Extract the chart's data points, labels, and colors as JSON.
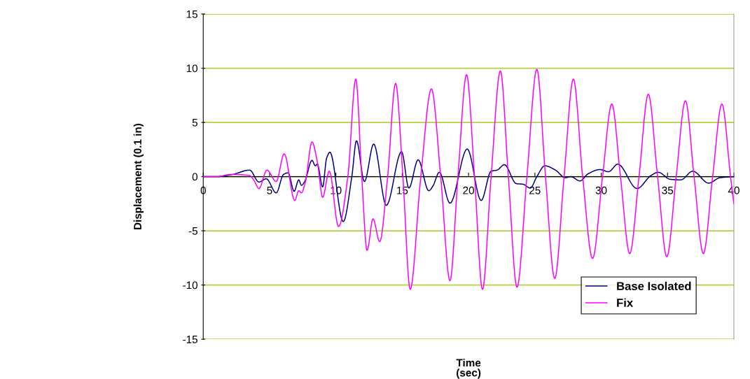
{
  "chart_data": {
    "type": "line",
    "xlabel": "Time\n(sec)",
    "ylabel": "Displacement (0.1 in)",
    "xlim": [
      0,
      40
    ],
    "xticks": [
      0,
      5,
      10,
      15,
      20,
      25,
      30,
      35,
      40
    ],
    "ylim": [
      -15,
      15
    ],
    "yticks": [
      -15,
      -10,
      -5,
      0,
      5,
      10,
      15
    ],
    "grid": "y",
    "legend": "bottom right",
    "marker": "none",
    "line_style": "solid",
    "series": [
      {
        "name": "Base Isolated",
        "color": "#000080",
        "x": [
          0,
          1,
          2.2,
          3.5,
          4.2,
          4.75,
          5.5,
          6.05,
          6.4,
          6.85,
          7.2,
          7.4,
          7.65,
          8.2,
          8.45,
          8.6,
          9.0,
          9.3,
          9.55,
          10.55,
          11.2,
          11.55,
          12.15,
          12.85,
          13.8,
          14.95,
          15.5,
          16.2,
          17.0,
          17.3,
          17.8,
          18.6,
          19.9,
          20.95,
          21.7,
          22.15,
          22.7,
          23.6,
          24.1,
          24.65,
          25.15,
          25.75,
          26.55,
          27.3,
          27.7,
          28.4,
          29.0,
          29.9,
          30.55,
          31.25,
          32.7,
          33.75,
          34.3,
          35.2,
          36.0,
          36.9,
          38.1,
          38.95,
          40
        ],
        "values": [
          0,
          0,
          0.2,
          0.6,
          -0.5,
          -0.2,
          -1.5,
          0.2,
          0.35,
          -1.35,
          -0.3,
          -0.8,
          -0.45,
          1.5,
          1.0,
          1.15,
          -0.95,
          1.7,
          2.25,
          -4.15,
          0,
          3.3,
          -0.45,
          3.0,
          -2.65,
          2.3,
          -1.05,
          1.55,
          -1.3,
          -0.9,
          0.4,
          -2.45,
          2.55,
          -2.2,
          0.5,
          0.6,
          1.1,
          -0.65,
          -0.7,
          -1.05,
          0,
          1.0,
          0.6,
          -0.1,
          0,
          -0.4,
          0.25,
          0.65,
          0.45,
          1.15,
          -1.1,
          0.1,
          0.4,
          -0.25,
          -0.3,
          0.5,
          -0.6,
          -0.1,
          0
        ]
      },
      {
        "name": "Fix",
        "color": "#ff00ff",
        "x": [
          0,
          1,
          2.1,
          3.5,
          3.8,
          4.2,
          4.8,
          5.5,
          6.1,
          6.9,
          7.2,
          7.4,
          7.7,
          8.2,
          8.6,
          9.0,
          9.5,
          10.2,
          10.9,
          11.5,
          11.95,
          12.35,
          12.8,
          13.3,
          13.9,
          14.5,
          15.05,
          15.6,
          16.4,
          17.2,
          17.9,
          18.6,
          19.2,
          19.85,
          20.45,
          21.05,
          21.7,
          22.4,
          23.0,
          23.65,
          24.4,
          25.15,
          25.8,
          26.5,
          27.2,
          27.9,
          28.6,
          29.35,
          30.1,
          30.8,
          31.45,
          32.15,
          32.85,
          33.55,
          34.25,
          34.95,
          35.65,
          36.35,
          37.0,
          37.7,
          38.4,
          39.1,
          39.75,
          40
        ],
        "values": [
          0,
          0,
          0.2,
          0.1,
          -0.3,
          -1.1,
          0.6,
          -0.45,
          2.1,
          -2.2,
          -1.3,
          -1.5,
          -0.5,
          3.2,
          1.35,
          -1.9,
          0.5,
          -4.6,
          0,
          9.0,
          0,
          -6.8,
          -3.9,
          -6.0,
          0,
          8.6,
          0,
          -10.4,
          0,
          8.1,
          0,
          -9.6,
          0,
          9.4,
          0,
          -10.4,
          0,
          9.75,
          0,
          -10.2,
          0,
          9.9,
          0,
          -9.4,
          0,
          9.0,
          0,
          -7.55,
          0,
          6.7,
          0,
          -7.1,
          0,
          7.6,
          0,
          -7.4,
          0,
          7.0,
          0,
          -7.1,
          0,
          6.7,
          0,
          -2.5
        ]
      }
    ]
  }
}
